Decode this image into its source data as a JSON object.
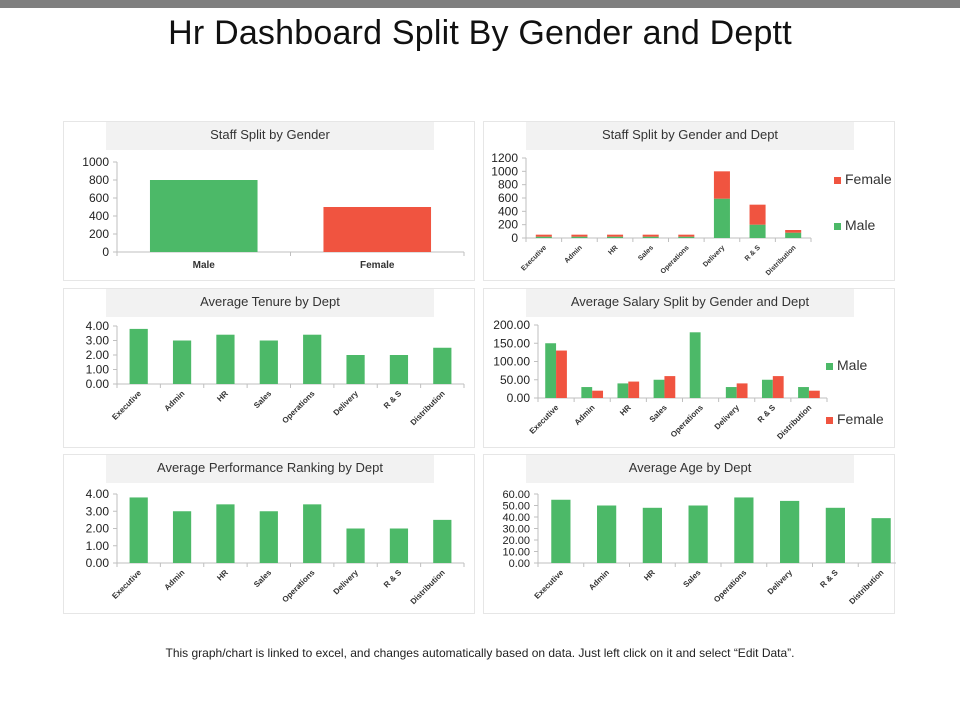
{
  "page": {
    "title": "Hr Dashboard Split By Gender and Deptt",
    "footnote": "This graph/chart is linked to excel, and changes automatically based on data. Just left click on it and select “Edit Data”."
  },
  "colors": {
    "male": "#4cb968",
    "female": "#f05440"
  },
  "chart_data": [
    {
      "id": "gender",
      "type": "bar",
      "title": "Staff Split by Gender",
      "categories": [
        "Male",
        "Female"
      ],
      "values": [
        800,
        500
      ],
      "bar_colors": [
        "#4cb968",
        "#f05440"
      ],
      "ylim": [
        0,
        1000
      ],
      "yticks": [
        "0",
        "200",
        "400",
        "600",
        "800",
        "1000"
      ],
      "legend": "none"
    },
    {
      "id": "gender_dept",
      "type": "bar",
      "stacked": true,
      "title": "Staff Split by Gender and Dept",
      "categories": [
        "Executive",
        "Admin",
        "HR",
        "Sales",
        "Operations",
        "Delivery",
        "R & S",
        "Distribution"
      ],
      "series": [
        {
          "name": "Male",
          "color": "#4cb968",
          "values": [
            20,
            20,
            20,
            20,
            20,
            590,
            200,
            80
          ]
        },
        {
          "name": "Female",
          "color": "#f05440",
          "values": [
            30,
            30,
            30,
            30,
            30,
            410,
            300,
            40
          ]
        }
      ],
      "ylim": [
        0,
        1200
      ],
      "yticks": [
        "0",
        "200",
        "400",
        "600",
        "800",
        "1000",
        "1200"
      ],
      "legend_order": [
        "Female",
        "Male"
      ],
      "legend": "right"
    },
    {
      "id": "tenure",
      "type": "bar",
      "title": "Average Tenure by Dept",
      "categories": [
        "Executive",
        "Admin",
        "HR",
        "Sales",
        "Operations",
        "Delivery",
        "R & S",
        "Distribution"
      ],
      "values": [
        3.8,
        3.0,
        3.4,
        3.0,
        3.4,
        2.0,
        2.0,
        2.5
      ],
      "ylim": [
        0,
        4
      ],
      "yticks": [
        "0.00",
        "1.00",
        "2.00",
        "3.00",
        "4.00"
      ],
      "legend": "none"
    },
    {
      "id": "salary",
      "type": "bar",
      "title": "Average Salary Split by Gender and Dept",
      "categories": [
        "Executive",
        "Admin",
        "HR",
        "Sales",
        "Operations",
        "Delivery",
        "R & S",
        "Distribution"
      ],
      "series": [
        {
          "name": "Male",
          "color": "#4cb968",
          "values": [
            150,
            30,
            40,
            50,
            180,
            30,
            50,
            30
          ]
        },
        {
          "name": "Female",
          "color": "#f05440",
          "values": [
            130,
            20,
            45,
            60,
            0,
            40,
            60,
            20
          ]
        }
      ],
      "ylim": [
        0,
        200
      ],
      "yticks": [
        "0.00",
        "50.00",
        "100.00",
        "150.00",
        "200.00"
      ],
      "legend_order": [
        "Male",
        "Female"
      ],
      "legend": "right"
    },
    {
      "id": "performance",
      "type": "bar",
      "title": "Average Performance Ranking by Dept",
      "categories": [
        "Executive",
        "Admin",
        "HR",
        "Sales",
        "Operations",
        "Delivery",
        "R & S",
        "Distribution"
      ],
      "values": [
        3.8,
        3.0,
        3.4,
        3.0,
        3.4,
        2.0,
        2.0,
        2.5
      ],
      "ylim": [
        0,
        4
      ],
      "yticks": [
        "0.00",
        "1.00",
        "2.00",
        "3.00",
        "4.00"
      ],
      "legend": "none"
    },
    {
      "id": "age",
      "type": "bar",
      "title": "Average Age by Dept",
      "categories": [
        "Executive",
        "Admin",
        "HR",
        "Sales",
        "Operations",
        "Delivery",
        "R & S",
        "Distribution"
      ],
      "values": [
        55,
        50,
        48,
        50,
        57,
        54,
        48,
        39
      ],
      "ylim": [
        0,
        60
      ],
      "yticks": [
        "0.00",
        "10.00",
        "20.00",
        "30.00",
        "40.00",
        "50.00",
        "60.00"
      ],
      "legend": "none"
    }
  ]
}
